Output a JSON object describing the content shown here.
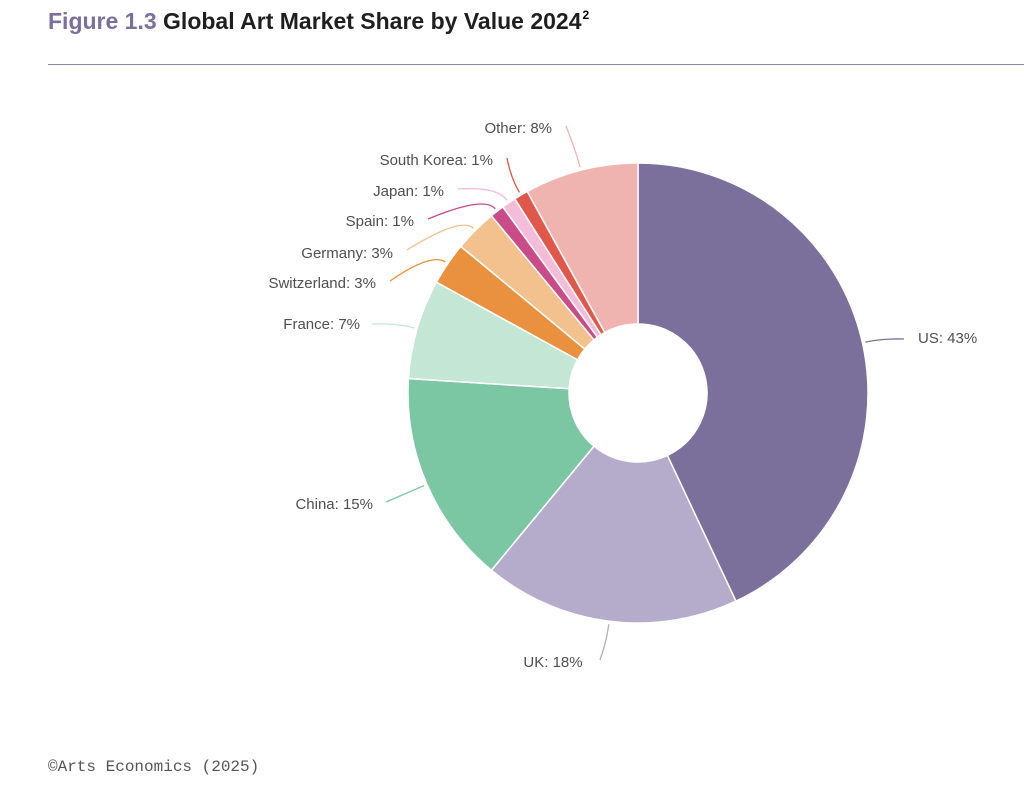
{
  "header": {
    "figure_number": "Figure 1.3",
    "title": "Global Art Market Share by Value 2024",
    "footnote_marker": "2"
  },
  "chart_data": {
    "type": "pie",
    "donut": true,
    "title": "Global Art Market Share by Value 2024",
    "slices": [
      {
        "label": "US",
        "value": 43,
        "display": "US: 43%",
        "color": "#7b6f9c"
      },
      {
        "label": "UK",
        "value": 18,
        "display": "UK: 18%",
        "color": "#b5abca"
      },
      {
        "label": "China",
        "value": 15,
        "display": "China: 15%",
        "color": "#7bc6a3"
      },
      {
        "label": "France",
        "value": 7,
        "display": "France: 7%",
        "color": "#c3e6d5"
      },
      {
        "label": "Switzerland",
        "value": 3,
        "display": "Switzerland: 3%",
        "color": "#ea913f"
      },
      {
        "label": "Germany",
        "value": 3,
        "display": "Germany: 3%",
        "color": "#f2c18e"
      },
      {
        "label": "Spain",
        "value": 1,
        "display": "Spain: 1%",
        "color": "#c94b87"
      },
      {
        "label": "Japan",
        "value": 1,
        "display": "Japan: 1%",
        "color": "#f3bcd9"
      },
      {
        "label": "South Korea",
        "value": 1,
        "display": "South Korea: 1%",
        "color": "#e0584a"
      },
      {
        "label": "Other",
        "value": 8,
        "display": "Other: 8%",
        "color": "#f0b4b0"
      }
    ],
    "unit": "%",
    "legend": "none"
  },
  "footer": {
    "source": "©Arts Economics (2025)"
  }
}
